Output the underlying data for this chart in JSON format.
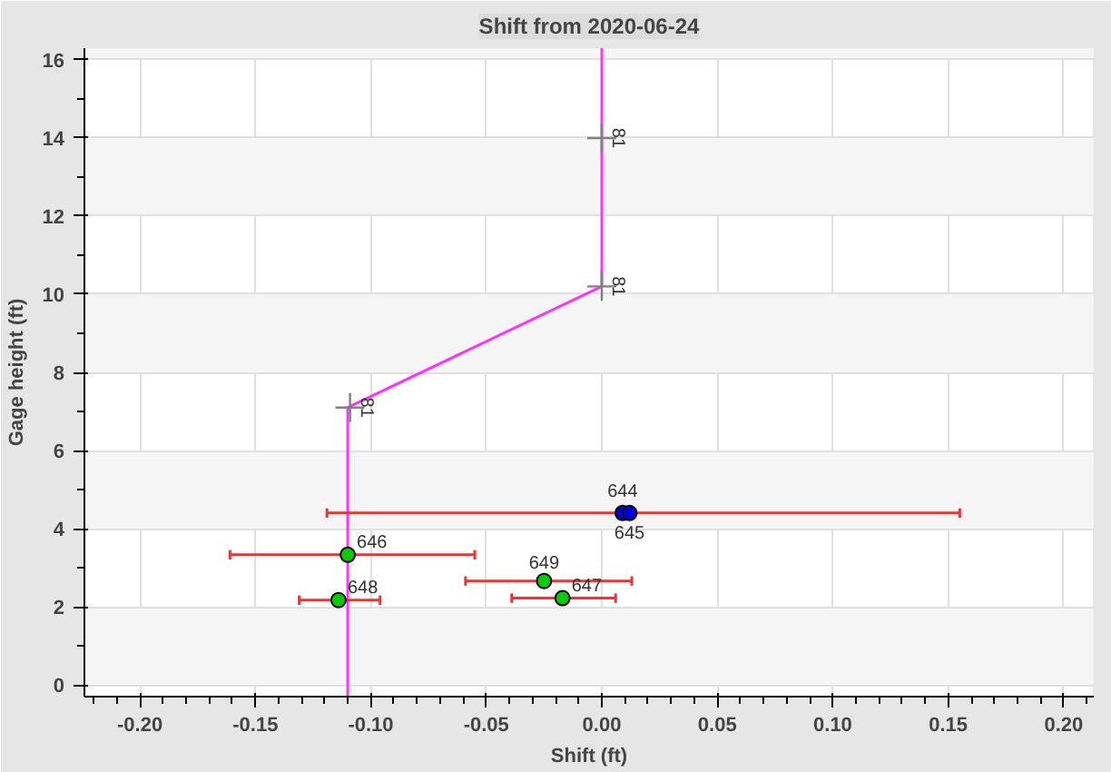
{
  "chart_data": {
    "type": "scatter",
    "title": "Shift from 2020-06-24",
    "xlabel": "Shift (ft)",
    "ylabel": "Gage height (ft)",
    "xlim": [
      -0.224,
      0.213
    ],
    "ylim": [
      -0.3,
      16.3
    ],
    "xticks": [
      {
        "value": -0.2,
        "label": "-0.20"
      },
      {
        "value": -0.15,
        "label": "-0.15"
      },
      {
        "value": -0.1,
        "label": "-0.10"
      },
      {
        "value": -0.05,
        "label": "-0.05"
      },
      {
        "value": 0,
        "label": "0.00"
      },
      {
        "value": 0.05,
        "label": "0.05"
      },
      {
        "value": 0.1,
        "label": "0.10"
      },
      {
        "value": 0.15,
        "label": "0.15"
      },
      {
        "value": 0.2,
        "label": "0.20"
      }
    ],
    "yticks": [
      0,
      2,
      4,
      6,
      8,
      10,
      12,
      14,
      16
    ],
    "grid": true,
    "series": [
      {
        "type": "line",
        "color": "#ff33ff",
        "marker": "none",
        "x": [
          -0.11,
          -0.11,
          0,
          0
        ],
        "values": [
          -0.3,
          7.1,
          10.2,
          16.3
        ]
      },
      {
        "color": "#808080",
        "marker": "cross",
        "x": [
          -0.109,
          0,
          0
        ],
        "values": [
          7.1,
          10.2,
          14
        ]
      },
      {
        "color": "#00cc00",
        "marker": "circle",
        "x": [
          -0.11,
          -0.025,
          -0.017,
          -0.114
        ],
        "values": [
          3.33,
          2.66,
          2.22,
          2.17
        ],
        "xerrors": [
          [
            -0.161,
            -0.055
          ],
          [
            -0.059,
            0.013
          ],
          [
            -0.039,
            0.006
          ],
          [
            -0.131,
            -0.096
          ]
        ]
      },
      {
        "color": "#0000dd",
        "marker": "circle",
        "x": [
          0.009,
          0.012
        ],
        "values": [
          4.4,
          4.4
        ],
        "xerrors": [
          [
            -0.119,
            0.155
          ],
          null
        ]
      }
    ],
    "annotations": [
      {
        "text": "81",
        "x": -0.109,
        "y": 7.1
      },
      {
        "text": "81",
        "x": 0,
        "y": 10.2
      },
      {
        "text": "81",
        "x": 0,
        "y": 14
      },
      {
        "text": "644",
        "x": 0.009,
        "y": 4.4
      },
      {
        "text": "645",
        "x": 0.012,
        "y": 4.4
      },
      {
        "text": "646",
        "x": -0.11,
        "y": 3.33
      },
      {
        "text": "649",
        "x": -0.025,
        "y": 2.66
      },
      {
        "text": "647",
        "x": -0.017,
        "y": 2.22
      },
      {
        "text": "648",
        "x": -0.114,
        "y": 2.17
      }
    ]
  }
}
